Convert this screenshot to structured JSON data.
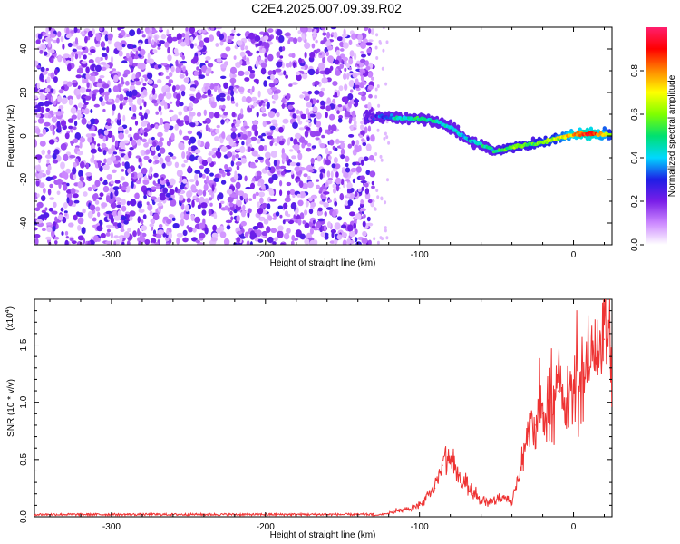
{
  "title": "C2E4.2025.007.09.39.R02",
  "chart_data": [
    {
      "type": "heatmap",
      "title": "C2E4.2025.007.09.39.R02",
      "xlabel": "Height of straight line (km)",
      "ylabel": "Frequency (Hz)",
      "xlim": [
        -350,
        25
      ],
      "ylim": [
        -50,
        50
      ],
      "x_ticks": [
        -300,
        -200,
        -100,
        0
      ],
      "y_ticks": [
        -40,
        -20,
        0,
        20,
        40
      ],
      "colorbar": {
        "label": "Normalized spectral amplitude",
        "range": [
          0,
          1
        ],
        "ticks": [
          "0.0",
          "0.2",
          "0.4",
          "0.6",
          "0.8"
        ],
        "colormap": [
          "#ffffff",
          "#cc88ff",
          "#7a1ee8",
          "#1e1ee6",
          "#00d8ff",
          "#00e070",
          "#80ff00",
          "#ffff00",
          "#ff8800",
          "#ff0000",
          "#ff1f6e"
        ]
      },
      "noise_region_x": [
        -350,
        -130
      ],
      "signal_ridge": {
        "x": [
          -135,
          -120,
          -110,
          -100,
          -90,
          -80,
          -70,
          -60,
          -50,
          -40,
          -30,
          -20,
          -10,
          0,
          10,
          20,
          25
        ],
        "frequency": [
          8,
          9,
          8,
          8,
          7,
          4,
          -1,
          -4,
          -7,
          -5,
          -4,
          -3,
          -1,
          1,
          1,
          1,
          0
        ],
        "amplitude": [
          0.2,
          0.35,
          0.45,
          0.5,
          0.45,
          0.45,
          0.4,
          0.45,
          0.5,
          0.55,
          0.55,
          0.6,
          0.65,
          0.8,
          0.9,
          0.75,
          0.6
        ]
      }
    },
    {
      "type": "line",
      "xlabel": "Height of straight line (km)",
      "ylabel": "SNR (10 * v/v)",
      "y_multiplier": "(x10",
      "y_multiplier_exp": "4",
      "y_multiplier_close": ")",
      "xlim": [
        -350,
        25
      ],
      "ylim": [
        0,
        1.9
      ],
      "x_ticks": [
        -300,
        -200,
        -100,
        0
      ],
      "y_ticks": [
        "0.0",
        "0.5",
        "1.0",
        "1.5"
      ],
      "color": "#ee3333",
      "series": [
        {
          "x": [
            -350,
            -130,
            -120,
            -110,
            -100,
            -90,
            -85,
            -80,
            -75,
            -70,
            -65,
            -60,
            -55,
            -50,
            -45,
            -40,
            -35,
            -30,
            -25,
            -20,
            -15,
            -10,
            -5,
            0,
            5,
            10,
            15,
            20,
            25
          ],
          "y": [
            0.01,
            0.01,
            0.03,
            0.06,
            0.1,
            0.25,
            0.45,
            0.5,
            0.35,
            0.3,
            0.2,
            0.15,
            0.12,
            0.15,
            0.18,
            0.12,
            0.4,
            0.7,
            0.8,
            0.9,
            1.0,
            1.1,
            0.95,
            1.1,
            1.2,
            1.3,
            1.5,
            1.55,
            1.5
          ]
        }
      ]
    }
  ]
}
